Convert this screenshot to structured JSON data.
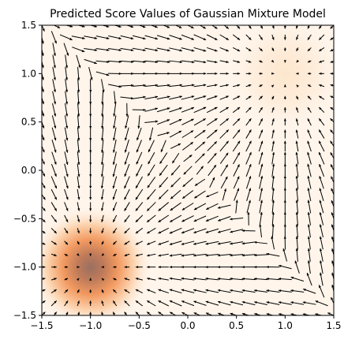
{
  "chart_data": {
    "type": "quiver",
    "title": "Predicted Score Values of Gaussian Mixture Model",
    "xlabel": "",
    "ylabel": "",
    "xlim": [
      -1.5,
      1.5
    ],
    "ylim": [
      -1.5,
      1.5
    ],
    "x_ticks": [
      "-1.5",
      "-1.0",
      "-0.5",
      "0.0",
      "0.5",
      "1.0",
      "1.5"
    ],
    "y_ticks": [
      "1.5",
      "1.0",
      "0.5",
      "0.0",
      "-0.5",
      "-1.0",
      "-1.5"
    ],
    "grid": false,
    "density_colormap": "Oranges",
    "density_components": [
      {
        "mean": [
          -1.0,
          -1.0
        ],
        "std": 0.3,
        "weight": 0.8
      },
      {
        "mean": [
          1.0,
          1.0
        ],
        "std": 0.3,
        "weight": 0.2
      }
    ],
    "quiver_grid": {
      "x_range": [
        -1.5,
        1.5
      ],
      "y_range": [
        -1.5,
        1.5
      ],
      "count": 25
    },
    "arrow_color": "#000000"
  }
}
